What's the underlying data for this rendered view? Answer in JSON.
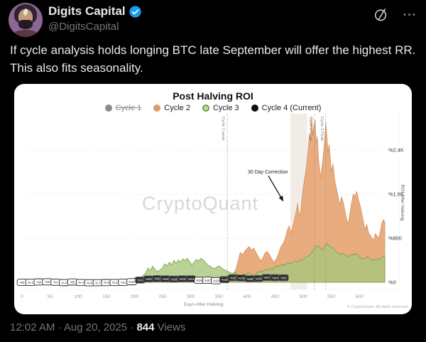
{
  "post": {
    "author": "Digits Capital",
    "handle": "@DigitsCapital",
    "text": "If cycle analysis holds longing BTC late September will offer the highest RR. This also fits seasonality.",
    "timestamp": "12:02 AM · Aug 20, 2025",
    "separator": " · ",
    "views_count": "844",
    "views_label": " Views",
    "colors": {
      "background": "#000000",
      "text_primary": "#e7e9ea",
      "text_secondary": "#71767b",
      "verified_blue": "#1d9bf0"
    }
  },
  "chart_data": {
    "type": "area",
    "title": "Post Halving ROI",
    "xlabel": "Days After Halving",
    "ylabel": "ROI After Halving",
    "watermark": "CryptoQuant",
    "copyright": "© CryptoQuant. All rights reserved",
    "xlim": [
      0,
      645
    ],
    "ylim": [
      0,
      3060
    ],
    "x_ticks": [
      0,
      50,
      100,
      150,
      200,
      250,
      300,
      350,
      400,
      450,
      500,
      550,
      600
    ],
    "y_ticks": [
      {
        "value": 0,
        "label": "%0"
      },
      {
        "value": 800,
        "label": "%800"
      },
      {
        "value": 1600,
        "label": "%1.6K"
      },
      {
        "value": 2400,
        "label": "%2.4K"
      }
    ],
    "legend": [
      {
        "name": "Cycle 1",
        "fill": "#8b8b8b",
        "ring": "#8b8b8b",
        "disabled": true
      },
      {
        "name": "Cycle 2",
        "fill": "#dd9c6b",
        "ring": "#dd9c6b",
        "disabled": false
      },
      {
        "name": "Cycle 3",
        "fill": "#c8dca6",
        "ring": "#6f9e3f",
        "disabled": false
      },
      {
        "name": "Cycle 4 (Current)",
        "fill": "#0f0f0f",
        "ring": "#0f0f0f",
        "disabled": false
      }
    ],
    "style": {
      "band_color": "#f2ece7",
      "grid_color": "#ddd8d2",
      "dash_color": "#9a938c",
      "axis_text": "#9b9b9b",
      "ytick_text": "#3a3a3a",
      "watermark_color": "#d7d7d7"
    },
    "annotations": {
      "correction_band": {
        "from_day": 477,
        "to_day": 507
      },
      "correction_label": {
        "text": "30 Day Correction",
        "at": [
          437,
          2000
        ],
        "arrow_from": [
          438,
          1930
        ],
        "arrow_to": [
          464,
          1480
        ]
      },
      "peak_lines": [
        {
          "label": "Cycle 1 peak",
          "day": 365
        },
        {
          "label": "Cycle 2 Peak",
          "day": 520
        },
        {
          "label": "Cycle 3 Peak",
          "day": 540
        }
      ]
    },
    "series": [
      {
        "name": "Cycle 2",
        "fill": "#e7a877",
        "stroke": "#d2925f",
        "opacity": 0.95,
        "points": [
          [
            0,
            2
          ],
          [
            15,
            4
          ],
          [
            30,
            8
          ],
          [
            45,
            6
          ],
          [
            60,
            10
          ],
          [
            75,
            8
          ],
          [
            90,
            12
          ],
          [
            105,
            10
          ],
          [
            120,
            14
          ],
          [
            135,
            12
          ],
          [
            150,
            16
          ],
          [
            165,
            14
          ],
          [
            180,
            18
          ],
          [
            195,
            22
          ],
          [
            210,
            26
          ],
          [
            225,
            30
          ],
          [
            240,
            34
          ],
          [
            255,
            38
          ],
          [
            270,
            44
          ],
          [
            285,
            50
          ],
          [
            300,
            58
          ],
          [
            315,
            52
          ],
          [
            330,
            60
          ],
          [
            345,
            68
          ],
          [
            352,
            110
          ],
          [
            358,
            90
          ],
          [
            364,
            130
          ],
          [
            370,
            110
          ],
          [
            376,
            150
          ],
          [
            380,
            230
          ],
          [
            384,
            380
          ],
          [
            388,
            540
          ],
          [
            392,
            500
          ],
          [
            396,
            560
          ],
          [
            400,
            610
          ],
          [
            404,
            650
          ],
          [
            408,
            580
          ],
          [
            412,
            620
          ],
          [
            416,
            540
          ],
          [
            420,
            470
          ],
          [
            424,
            390
          ],
          [
            428,
            440
          ],
          [
            432,
            530
          ],
          [
            436,
            560
          ],
          [
            440,
            500
          ],
          [
            444,
            420
          ],
          [
            448,
            360
          ],
          [
            452,
            420
          ],
          [
            456,
            520
          ],
          [
            460,
            640
          ],
          [
            464,
            700
          ],
          [
            468,
            800
          ],
          [
            472,
            950
          ],
          [
            475,
            1020
          ],
          [
            478,
            890
          ],
          [
            481,
            1000
          ],
          [
            484,
            1120
          ],
          [
            487,
            1260
          ],
          [
            490,
            1430
          ],
          [
            493,
            1180
          ],
          [
            496,
            1320
          ],
          [
            499,
            1650
          ],
          [
            502,
            1850
          ],
          [
            505,
            2050
          ],
          [
            508,
            2350
          ],
          [
            511,
            2700
          ],
          [
            513,
            2550
          ],
          [
            515,
            3000
          ],
          [
            517,
            2650
          ],
          [
            519,
            2850
          ],
          [
            521,
            2950
          ],
          [
            523,
            2500
          ],
          [
            525,
            2650
          ],
          [
            527,
            2250
          ],
          [
            529,
            2050
          ],
          [
            531,
            1900
          ],
          [
            534,
            2150
          ],
          [
            537,
            2450
          ],
          [
            540,
            2900
          ],
          [
            542,
            2650
          ],
          [
            544,
            2350
          ],
          [
            546,
            2500
          ],
          [
            548,
            2250
          ],
          [
            550,
            2000
          ],
          [
            553,
            2150
          ],
          [
            556,
            1850
          ],
          [
            559,
            1700
          ],
          [
            562,
            1550
          ],
          [
            565,
            1400
          ],
          [
            568,
            1550
          ],
          [
            571,
            1450
          ],
          [
            574,
            1300
          ],
          [
            577,
            1150
          ],
          [
            580,
            1050
          ],
          [
            583,
            1250
          ],
          [
            586,
            1450
          ],
          [
            589,
            1600
          ],
          [
            592,
            1550
          ],
          [
            595,
            1650
          ],
          [
            598,
            1500
          ],
          [
            601,
            1400
          ],
          [
            604,
            1250
          ],
          [
            607,
            1100
          ],
          [
            610,
            950
          ],
          [
            613,
            1050
          ],
          [
            616,
            900
          ],
          [
            619,
            850
          ],
          [
            622,
            800
          ],
          [
            625,
            760
          ],
          [
            628,
            880
          ],
          [
            631,
            840
          ],
          [
            634,
            800
          ],
          [
            637,
            920
          ],
          [
            640,
            1080
          ],
          [
            643,
            1140
          ],
          [
            645,
            1080
          ]
        ]
      },
      {
        "name": "Cycle 3",
        "fill": "#a9c77d",
        "stroke": "#74a23c",
        "opacity": 0.8,
        "points": [
          [
            0,
            2
          ],
          [
            15,
            3
          ],
          [
            30,
            6
          ],
          [
            45,
            4
          ],
          [
            60,
            8
          ],
          [
            75,
            6
          ],
          [
            90,
            10
          ],
          [
            105,
            8
          ],
          [
            120,
            12
          ],
          [
            135,
            10
          ],
          [
            150,
            14
          ],
          [
            165,
            16
          ],
          [
            180,
            22
          ],
          [
            190,
            35
          ],
          [
            196,
            60
          ],
          [
            202,
            90
          ],
          [
            208,
            70
          ],
          [
            214,
            110
          ],
          [
            220,
            170
          ],
          [
            224,
            260
          ],
          [
            228,
            210
          ],
          [
            232,
            290
          ],
          [
            236,
            240
          ],
          [
            240,
            195
          ],
          [
            245,
            215
          ],
          [
            250,
            265
          ],
          [
            254,
            335
          ],
          [
            258,
            295
          ],
          [
            262,
            365
          ],
          [
            266,
            315
          ],
          [
            270,
            395
          ],
          [
            274,
            345
          ],
          [
            278,
            405
          ],
          [
            282,
            365
          ],
          [
            286,
            425
          ],
          [
            290,
            395
          ],
          [
            294,
            435
          ],
          [
            298,
            375
          ],
          [
            302,
            315
          ],
          [
            306,
            365
          ],
          [
            310,
            415
          ],
          [
            314,
            385
          ],
          [
            318,
            435
          ],
          [
            322,
            405
          ],
          [
            326,
            365
          ],
          [
            330,
            315
          ],
          [
            334,
            295
          ],
          [
            338,
            265
          ],
          [
            342,
            245
          ],
          [
            346,
            275
          ],
          [
            350,
            295
          ],
          [
            354,
            265
          ],
          [
            358,
            235
          ],
          [
            362,
            215
          ],
          [
            366,
            195
          ],
          [
            370,
            175
          ],
          [
            374,
            155
          ],
          [
            378,
            185
          ],
          [
            382,
            145
          ],
          [
            386,
            125
          ],
          [
            390,
            115
          ],
          [
            394,
            155
          ],
          [
            398,
            135
          ],
          [
            402,
            175
          ],
          [
            406,
            155
          ],
          [
            410,
            135
          ],
          [
            414,
            125
          ],
          [
            418,
            175
          ],
          [
            422,
            205
          ],
          [
            426,
            185
          ],
          [
            430,
            215
          ],
          [
            434,
            235
          ],
          [
            438,
            215
          ],
          [
            442,
            255
          ],
          [
            446,
            235
          ],
          [
            450,
            275
          ],
          [
            454,
            305
          ],
          [
            458,
            285
          ],
          [
            462,
            325
          ],
          [
            466,
            305
          ],
          [
            470,
            335
          ],
          [
            474,
            355
          ],
          [
            478,
            335
          ],
          [
            482,
            365
          ],
          [
            486,
            385
          ],
          [
            490,
            365
          ],
          [
            494,
            395
          ],
          [
            498,
            415
          ],
          [
            502,
            435
          ],
          [
            506,
            455
          ],
          [
            510,
            485
          ],
          [
            514,
            525
          ],
          [
            518,
            585
          ],
          [
            522,
            645
          ],
          [
            526,
            665
          ],
          [
            530,
            625
          ],
          [
            534,
            585
          ],
          [
            538,
            645
          ],
          [
            542,
            705
          ],
          [
            546,
            665
          ],
          [
            550,
            635
          ],
          [
            554,
            605
          ],
          [
            558,
            565
          ],
          [
            562,
            535
          ],
          [
            566,
            505
          ],
          [
            570,
            525
          ],
          [
            574,
            495
          ],
          [
            578,
            465
          ],
          [
            582,
            485
          ],
          [
            586,
            515
          ],
          [
            590,
            495
          ],
          [
            594,
            525
          ],
          [
            598,
            485
          ],
          [
            602,
            445
          ],
          [
            606,
            415
          ],
          [
            610,
            435
          ],
          [
            614,
            465
          ],
          [
            618,
            425
          ],
          [
            622,
            395
          ],
          [
            626,
            425
          ],
          [
            630,
            405
          ],
          [
            634,
            435
          ],
          [
            638,
            415
          ],
          [
            642,
            465
          ],
          [
            645,
            485
          ]
        ]
      },
      {
        "name": "Cycle 4 (Current)",
        "line_color": "#383838",
        "label_styles": {
          "light": {
            "bg": "#ffffff",
            "fg": "#1f1f1f",
            "border": "#1f1f1f"
          },
          "dark": {
            "bg": "#2b2b2b",
            "fg": "#ffffff",
            "border": "#6b6b6b"
          }
        },
        "labels": [
          [
            0,
            0,
            "light"
          ],
          [
            15,
            -1,
            "light"
          ],
          [
            30,
            6,
            "light"
          ],
          [
            45,
            8,
            "light"
          ],
          [
            60,
            1,
            "light"
          ],
          [
            75,
            -6,
            "light"
          ],
          [
            90,
            5,
            "light"
          ],
          [
            105,
            -4,
            "light"
          ],
          [
            120,
            -8,
            "light"
          ],
          [
            135,
            -7,
            "light"
          ],
          [
            150,
            -5,
            "light"
          ],
          [
            165,
            -4,
            "light"
          ],
          [
            180,
            0,
            "light"
          ],
          [
            195,
            10,
            "light"
          ],
          [
            210,
            41,
            "dark"
          ],
          [
            225,
            60,
            "dark"
          ],
          [
            240,
            66,
            "dark"
          ],
          [
            255,
            63,
            "dark"
          ],
          [
            270,
            58,
            "dark"
          ],
          [
            285,
            63,
            "dark"
          ],
          [
            300,
            64,
            "dark"
          ],
          [
            315,
            35,
            "light"
          ],
          [
            330,
            37,
            "light"
          ],
          [
            345,
            29,
            "light"
          ],
          [
            360,
            48,
            "dark"
          ],
          [
            375,
            83,
            "dark"
          ],
          [
            390,
            78,
            "dark"
          ],
          [
            405,
            65,
            "dark"
          ],
          [
            420,
            68,
            "dark"
          ],
          [
            435,
            87,
            "dark"
          ],
          [
            450,
            84,
            "dark"
          ],
          [
            465,
            83,
            "dark"
          ]
        ]
      }
    ]
  }
}
